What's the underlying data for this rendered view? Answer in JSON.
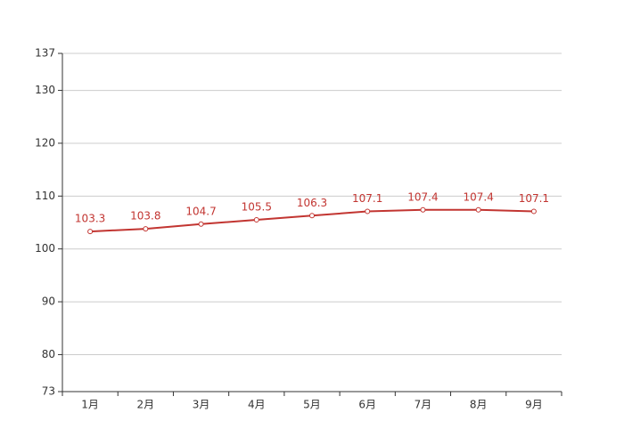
{
  "chart_data": {
    "type": "line",
    "categories": [
      "1月",
      "2月",
      "3月",
      "4月",
      "5月",
      "6月",
      "7月",
      "8月",
      "9月"
    ],
    "values": [
      103.3,
      103.8,
      104.7,
      105.5,
      106.3,
      107.1,
      107.4,
      107.4,
      107.1
    ],
    "color": "#c23531",
    "ylim": [
      73,
      137
    ],
    "yticks": [
      73,
      80,
      90,
      100,
      110,
      120,
      130,
      137
    ],
    "grid": true
  }
}
